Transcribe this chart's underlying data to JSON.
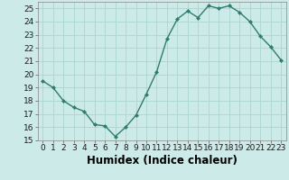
{
  "x": [
    0,
    1,
    2,
    3,
    4,
    5,
    6,
    7,
    8,
    9,
    10,
    11,
    12,
    13,
    14,
    15,
    16,
    17,
    18,
    19,
    20,
    21,
    22,
    23
  ],
  "y": [
    19.5,
    19.0,
    18.0,
    17.5,
    17.2,
    16.2,
    16.1,
    15.3,
    16.0,
    16.9,
    18.5,
    20.2,
    22.7,
    24.2,
    24.8,
    24.3,
    25.2,
    25.0,
    25.2,
    24.7,
    24.0,
    22.9,
    22.1,
    21.1
  ],
  "line_color": "#2e7d6e",
  "marker": "D",
  "marker_size": 2.0,
  "bg_color": "#cceae7",
  "grid_color": "#aad4d0",
  "xlabel": "Humidex (Indice chaleur)",
  "ylabel": "",
  "xlim": [
    -0.5,
    23.5
  ],
  "ylim": [
    15,
    25.5
  ],
  "yticks": [
    15,
    16,
    17,
    18,
    19,
    20,
    21,
    22,
    23,
    24,
    25
  ],
  "xticks": [
    0,
    1,
    2,
    3,
    4,
    5,
    6,
    7,
    8,
    9,
    10,
    11,
    12,
    13,
    14,
    15,
    16,
    17,
    18,
    19,
    20,
    21,
    22,
    23
  ],
  "tick_fontsize": 6.5,
  "xlabel_fontsize": 8.5
}
